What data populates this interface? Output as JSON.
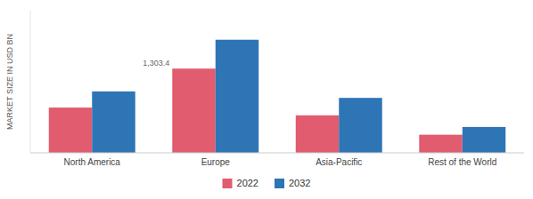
{
  "chart_data": {
    "type": "bar",
    "categories": [
      "North America",
      "Europe",
      "Asia-Pacific",
      "Rest of the World"
    ],
    "series": [
      {
        "name": "2022",
        "color": "#e05c6e",
        "values": [
          700,
          1303.4,
          580,
          280
        ]
      },
      {
        "name": "2032",
        "color": "#2e75b6",
        "values": [
          950,
          1750,
          850,
          400
        ]
      }
    ],
    "y_label": "MARKET SIZE IN USD BN",
    "annotations": [
      {
        "text": "1,303.4",
        "category": "Europe",
        "series": "2022",
        "value": 1303.4
      }
    ],
    "ylim": [
      0,
      2200
    ],
    "tick_labels": "x",
    "grid": false,
    "legend": "bottom"
  }
}
